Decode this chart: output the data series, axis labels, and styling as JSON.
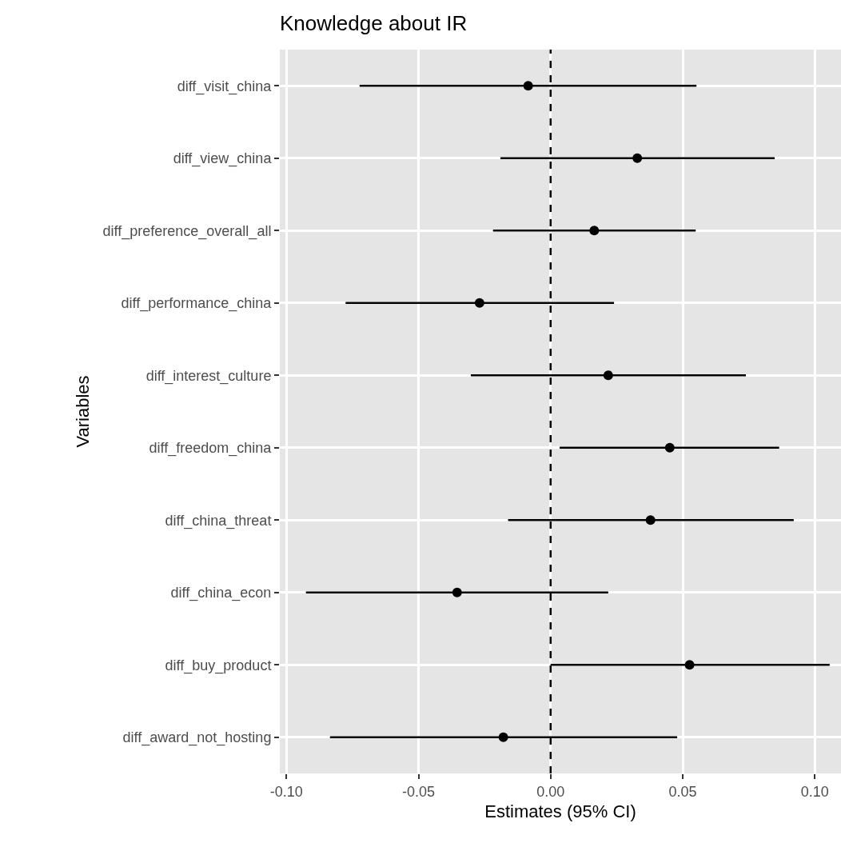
{
  "chart_data": {
    "type": "scatter",
    "orientation": "horizontal",
    "title": "Knowledge about IR",
    "xlabel": "Estimates (95% CI)",
    "ylabel": "Variables",
    "categories": [
      "diff_visit_china",
      "diff_view_china",
      "diff_preference_overall_all",
      "diff_performance_china",
      "diff_interest_culture",
      "diff_freedom_china",
      "diff_china_threat",
      "diff_china_econ",
      "diff_buy_product",
      "diff_award_not_hosting"
    ],
    "series": [
      {
        "color": "#000000",
        "values": [
          -0.0085,
          0.0328,
          0.0165,
          -0.0269,
          0.0218,
          0.0451,
          0.0378,
          -0.0354,
          0.0526,
          -0.0179
        ],
        "errors": [
          [
            -0.0723,
            0.0552
          ],
          [
            -0.019,
            0.0848
          ],
          [
            -0.0218,
            0.0549
          ],
          [
            -0.0776,
            0.024
          ],
          [
            -0.0302,
            0.0739
          ],
          [
            0.0034,
            0.0865
          ],
          [
            -0.0161,
            0.092
          ],
          [
            -0.0926,
            0.0218
          ],
          [
            0.0,
            0.1056
          ],
          [
            -0.0835,
            0.0479
          ]
        ]
      }
    ],
    "xlim": [
      -0.1025,
      0.1099
    ],
    "xticks": [
      {
        "value": -0.1,
        "label": "-0.10"
      },
      {
        "value": -0.05,
        "label": "-0.05"
      },
      {
        "value": 0,
        "label": "0.00"
      },
      {
        "value": 0.05,
        "label": "0.05"
      },
      {
        "value": 0.1,
        "label": "0.10"
      }
    ],
    "ref_lines": [
      {
        "axis": "x",
        "value": 0,
        "color": "#000000",
        "line_style": "dashed"
      }
    ],
    "grid": true,
    "marker": "circle"
  }
}
